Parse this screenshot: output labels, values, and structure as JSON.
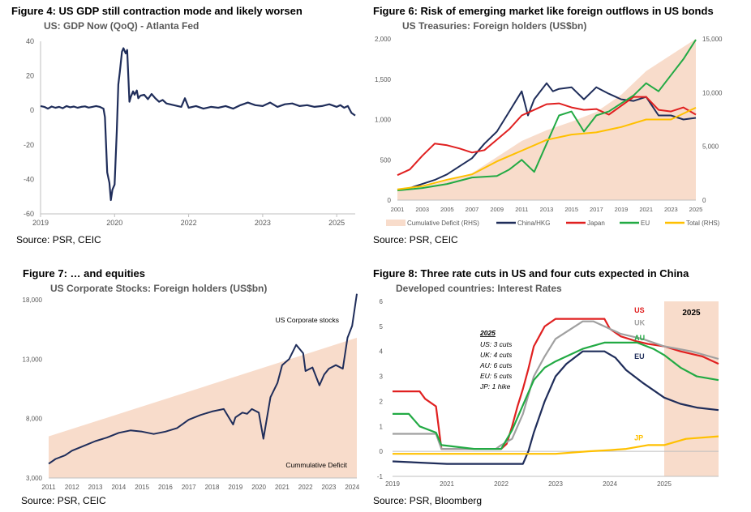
{
  "figures": {
    "fig4": {
      "title": "Figure 4: US GDP still contraction mode and likely worsen",
      "subtitle": "US: GDP Now (QoQ) - Atlanta Fed",
      "source": "Source: PSR, CEIC"
    },
    "fig6": {
      "title": "Figure 6: Risk of emerging market like foreign outflows in US bonds",
      "subtitle": "US Treasuries: Foreign holders (US$bn)",
      "source": "Source: PSR, CEIC"
    },
    "fig7": {
      "title": "Figure 7:  … and equities",
      "subtitle": "US Corporate Stocks: Foreign holders (US$bn)",
      "source": "Source: PSR, CEIC"
    },
    "fig8": {
      "title": "Figure 8: Three rate cuts in US and four cuts expected in China",
      "subtitle": "Developed countries: Interest Rates",
      "source": "Source: PSR, Bloomberg"
    }
  },
  "chart_data": [
    {
      "id": "fig4",
      "type": "line",
      "title": "US: GDP Now (QoQ) - Atlanta Fed",
      "x_ticks": [
        "2019",
        "2020",
        "2022",
        "2023",
        "2025"
      ],
      "x_tick_values": [
        2019.0,
        2020.0,
        2021.0,
        2022.0,
        2023.0
      ],
      "xlim": [
        2019.0,
        2023.25
      ],
      "y_ticks": [
        "40",
        "20",
        "0",
        "-20",
        "-40",
        "-60"
      ],
      "ylim": [
        -60,
        40
      ],
      "color": "#1f2d5a",
      "series": [
        {
          "x": [
            2019.0,
            2019.05,
            2019.1,
            2019.15,
            2019.2,
            2019.25,
            2019.3,
            2019.35,
            2019.4,
            2019.45,
            2019.5,
            2019.55,
            2019.6,
            2019.65,
            2019.7,
            2019.75,
            2019.8,
            2019.85,
            2019.87,
            2019.9,
            2019.93,
            2019.95,
            2019.97,
            2020.0,
            2020.03,
            2020.05,
            2020.07,
            2020.1,
            2020.12,
            2020.15,
            2020.17,
            2020.2,
            2020.22,
            2020.25,
            2020.27,
            2020.3,
            2020.32,
            2020.35,
            2020.4,
            2020.45,
            2020.5,
            2020.55,
            2020.6,
            2020.65,
            2020.7,
            2020.8,
            2020.9,
            2020.95,
            2021.0,
            2021.1,
            2021.2,
            2021.3,
            2021.4,
            2021.5,
            2021.6,
            2021.7,
            2021.8,
            2021.9,
            2022.0,
            2022.1,
            2022.2,
            2022.3,
            2022.4,
            2022.5,
            2022.6,
            2022.7,
            2022.8,
            2022.9,
            2023.0,
            2023.05,
            2023.1,
            2023.15,
            2023.2,
            2023.25
          ],
          "y": [
            2.5,
            2.0,
            1.0,
            2.2,
            1.5,
            2.0,
            1.2,
            2.5,
            1.8,
            2.2,
            1.5,
            2.0,
            2.3,
            1.6,
            2.0,
            2.5,
            2.0,
            1.0,
            -4.0,
            -36.0,
            -42.0,
            -52.0,
            -46.0,
            -43.0,
            -12.0,
            15.0,
            22.0,
            34.0,
            36.0,
            33.0,
            35.0,
            5.0,
            8.0,
            11.0,
            9.0,
            11.5,
            7.0,
            8.5,
            9.0,
            6.5,
            9.5,
            7.0,
            5.0,
            6.0,
            4.0,
            3.0,
            2.0,
            7.0,
            1.5,
            2.5,
            1.0,
            2.0,
            1.5,
            2.5,
            1.0,
            3.0,
            4.5,
            3.0,
            2.5,
            4.5,
            2.0,
            3.5,
            4.0,
            2.5,
            3.0,
            2.0,
            2.5,
            3.5,
            2.0,
            3.0,
            1.5,
            2.5,
            -1.5,
            -3.0
          ]
        }
      ]
    },
    {
      "id": "fig6",
      "type": "line",
      "title": "US Treasuries: Foreign holders (US$bn)",
      "x_ticks": [
        "2001",
        "2003",
        "2005",
        "2007",
        "2009",
        "2011",
        "2013",
        "2015",
        "2017",
        "2019",
        "2021",
        "2023",
        "2025"
      ],
      "xlim": [
        2001,
        2025
      ],
      "y_ticks_left": [
        "0",
        "500",
        "1,000",
        "1,500",
        "2,000"
      ],
      "ylim_left": [
        0,
        2000
      ],
      "y_ticks_right": [
        "0",
        "5,000",
        "10,000",
        "15,000"
      ],
      "ylim_right": [
        0,
        15000
      ],
      "legend": [
        "Cumulative Deficit (RHS)",
        "China/HKG",
        "Japan",
        "EU",
        "Total (RHS)"
      ],
      "legend_position": "bottom",
      "series": [
        {
          "name": "Cumulative Deficit (RHS)",
          "axis": "right",
          "color": "#f8dccb",
          "kind": "area",
          "x": [
            2001,
            2003,
            2005,
            2007,
            2009,
            2011,
            2013,
            2015,
            2017,
            2019,
            2021,
            2023,
            2025
          ],
          "y": [
            800,
            1200,
            1800,
            2500,
            4000,
            5500,
            6500,
            7300,
            8200,
            9800,
            12000,
            13500,
            15000
          ]
        },
        {
          "name": "China/HKG",
          "axis": "left",
          "color": "#1f2d5a",
          "x": [
            2001,
            2002,
            2003,
            2004,
            2005,
            2006,
            2007,
            2008,
            2009,
            2010,
            2011,
            2011.5,
            2012,
            2013,
            2013.5,
            2014,
            2015,
            2016,
            2017,
            2018,
            2019,
            2020,
            2021,
            2022,
            2023,
            2024,
            2025
          ],
          "y": [
            130,
            150,
            200,
            250,
            320,
            420,
            520,
            700,
            850,
            1100,
            1350,
            1050,
            1250,
            1450,
            1350,
            1380,
            1400,
            1250,
            1400,
            1320,
            1250,
            1230,
            1280,
            1050,
            1050,
            1000,
            1020
          ]
        },
        {
          "name": "Japan",
          "axis": "left",
          "color": "#e02020",
          "x": [
            2001,
            2002,
            2003,
            2004,
            2005,
            2006,
            2007,
            2008,
            2009,
            2010,
            2011,
            2012,
            2013,
            2014,
            2015,
            2016,
            2017,
            2018,
            2019,
            2020,
            2021,
            2022,
            2023,
            2024,
            2025
          ],
          "y": [
            310,
            380,
            550,
            700,
            680,
            640,
            590,
            620,
            750,
            880,
            1050,
            1120,
            1190,
            1200,
            1150,
            1120,
            1130,
            1060,
            1170,
            1280,
            1280,
            1120,
            1100,
            1150,
            1060
          ]
        },
        {
          "name": "EU",
          "axis": "left",
          "color": "#22aa44",
          "x": [
            2001,
            2003,
            2005,
            2007,
            2009,
            2010,
            2011,
            2012,
            2013,
            2014,
            2015,
            2016,
            2017,
            2018,
            2019,
            2020,
            2021,
            2022,
            2023,
            2024,
            2025
          ],
          "y": [
            120,
            150,
            200,
            280,
            300,
            380,
            500,
            350,
            700,
            1050,
            1100,
            850,
            1050,
            1100,
            1200,
            1300,
            1450,
            1350,
            1550,
            1750,
            1990
          ]
        },
        {
          "name": "Total (RHS)",
          "axis": "right",
          "color": "#ffc000",
          "x": [
            2001,
            2003,
            2005,
            2007,
            2009,
            2011,
            2013,
            2015,
            2017,
            2019,
            2021,
            2023,
            2025
          ],
          "y": [
            1000,
            1300,
            1900,
            2400,
            3600,
            4600,
            5600,
            6100,
            6300,
            6800,
            7500,
            7500,
            8600
          ]
        }
      ]
    },
    {
      "id": "fig7",
      "type": "line",
      "title": "US Corporate Stocks: Foreign holders (US$bn)",
      "x_ticks": [
        "2011",
        "2012",
        "2013",
        "2014",
        "2015",
        "2016",
        "2017",
        "2018",
        "2019",
        "2020",
        "2021",
        "2022",
        "2023",
        "2024"
      ],
      "xlim": [
        2011,
        2024.2
      ],
      "y_ticks": [
        "3,000",
        "8,000",
        "13,000",
        "18,000"
      ],
      "ylim": [
        3000,
        18000
      ],
      "annotations": [
        "US Corporate stocks",
        "Cummulative Deficit"
      ],
      "series": [
        {
          "name": "Cummulative Deficit",
          "color": "#f8dccb",
          "kind": "area",
          "x": [
            2011,
            2024.2
          ],
          "y": [
            6500,
            14800
          ]
        },
        {
          "name": "US Corporate stocks",
          "color": "#1f2d5a",
          "x": [
            2011,
            2011.3,
            2011.7,
            2012,
            2012.5,
            2013,
            2013.5,
            2014,
            2014.5,
            2015,
            2015.5,
            2016,
            2016.5,
            2017,
            2017.5,
            2018,
            2018.5,
            2018.9,
            2019,
            2019.3,
            2019.5,
            2019.7,
            2020,
            2020.2,
            2020.5,
            2020.8,
            2021,
            2021.3,
            2021.6,
            2021.9,
            2022,
            2022.3,
            2022.6,
            2022.8,
            2023,
            2023.3,
            2023.6,
            2023.8,
            2024,
            2024.2
          ],
          "y": [
            4200,
            4600,
            4900,
            5300,
            5700,
            6100,
            6400,
            6800,
            7000,
            6900,
            6700,
            6900,
            7200,
            7900,
            8300,
            8600,
            8800,
            7500,
            8100,
            8500,
            8400,
            8800,
            8500,
            6300,
            9800,
            11000,
            12500,
            13000,
            14200,
            13500,
            12000,
            12300,
            10800,
            11700,
            12200,
            12500,
            12200,
            14800,
            15800,
            18500
          ]
        }
      ]
    },
    {
      "id": "fig8",
      "type": "line",
      "title": "Developed countries: Interest Rates",
      "x_ticks": [
        "2019",
        "2021",
        "2022",
        "2023",
        "2024",
        "2025"
      ],
      "x_tick_values": [
        2019,
        2020,
        2021,
        2022,
        2023,
        2024
      ],
      "xlim": [
        2019,
        2025.0
      ],
      "y_ticks": [
        "6",
        "5",
        "4",
        "3",
        "2",
        "1",
        "0",
        "-1"
      ],
      "ylim": [
        -1,
        6
      ],
      "shaded_region": {
        "x": [
          2024.0,
          2025.0
        ],
        "label": "2025",
        "color": "#f8dccb"
      },
      "annotation_box": {
        "heading": "2025",
        "lines": [
          "US: 3 cuts",
          "UK: 4 cuts",
          "AU: 6 cuts",
          "EU: 5 cuts",
          "JP:  1 hike"
        ]
      },
      "series": [
        {
          "name": "US",
          "color": "#e02020",
          "x": [
            2019,
            2019.5,
            2019.6,
            2019.8,
            2019.9,
            2020.0,
            2020.5,
            2021,
            2021.1,
            2021.2,
            2021.3,
            2021.4,
            2021.5,
            2021.6,
            2021.7,
            2021.8,
            2022.0,
            2022.5,
            2022.7,
            2022.9,
            2023.0,
            2023.2,
            2023.5,
            2023.7,
            2024.0,
            2024.3,
            2024.7,
            2025.0
          ],
          "y": [
            2.4,
            2.4,
            2.1,
            1.8,
            0.1,
            0.1,
            0.1,
            0.1,
            0.3,
            1.0,
            1.8,
            2.5,
            3.3,
            4.2,
            4.6,
            5.0,
            5.3,
            5.3,
            5.3,
            5.3,
            4.9,
            4.6,
            4.4,
            4.3,
            4.2,
            4.0,
            3.8,
            3.5
          ]
        },
        {
          "name": "UK",
          "color": "#a0a0a0",
          "x": [
            2019,
            2019.8,
            2019.9,
            2020.5,
            2020.9,
            2021.0,
            2021.2,
            2021.4,
            2021.6,
            2021.8,
            2022.0,
            2022.5,
            2022.7,
            2022.9,
            2023.2,
            2023.6,
            2024.0,
            2024.5,
            2025.0
          ],
          "y": [
            0.7,
            0.7,
            0.1,
            0.1,
            0.1,
            0.25,
            0.5,
            1.5,
            3.0,
            3.8,
            4.5,
            5.2,
            5.2,
            5.0,
            4.7,
            4.5,
            4.2,
            4.0,
            3.7
          ]
        },
        {
          "name": "AU",
          "color": "#22aa44",
          "x": [
            2019,
            2019.3,
            2019.5,
            2019.8,
            2019.9,
            2020.5,
            2021.0,
            2021.2,
            2021.4,
            2021.6,
            2021.8,
            2022.0,
            2022.5,
            2022.9,
            2023.2,
            2023.5,
            2023.8,
            2024.0,
            2024.3,
            2024.6,
            2025.0
          ],
          "y": [
            1.5,
            1.5,
            1.0,
            0.75,
            0.25,
            0.1,
            0.1,
            0.85,
            1.85,
            2.85,
            3.35,
            3.6,
            4.1,
            4.35,
            4.35,
            4.35,
            4.1,
            3.85,
            3.35,
            3.0,
            2.85
          ]
        },
        {
          "name": "EU",
          "color": "#1f2d5a",
          "x": [
            2019,
            2020,
            2021.4,
            2021.5,
            2021.6,
            2021.8,
            2022.0,
            2022.2,
            2022.5,
            2022.9,
            2023.1,
            2023.3,
            2023.6,
            2024.0,
            2024.3,
            2024.6,
            2025.0
          ],
          "y": [
            -0.4,
            -0.5,
            -0.5,
            0.0,
            0.75,
            2.0,
            3.0,
            3.5,
            4.0,
            4.0,
            3.75,
            3.25,
            2.75,
            2.15,
            1.9,
            1.75,
            1.65
          ]
        },
        {
          "name": "JP",
          "color": "#ffc000",
          "x": [
            2019,
            2020,
            2021,
            2022,
            2022.6,
            2023.0,
            2023.3,
            2023.7,
            2024.0,
            2024.4,
            2025.0
          ],
          "y": [
            -0.1,
            -0.1,
            -0.1,
            -0.1,
            0.0,
            0.05,
            0.1,
            0.25,
            0.25,
            0.5,
            0.6
          ]
        }
      ]
    }
  ]
}
